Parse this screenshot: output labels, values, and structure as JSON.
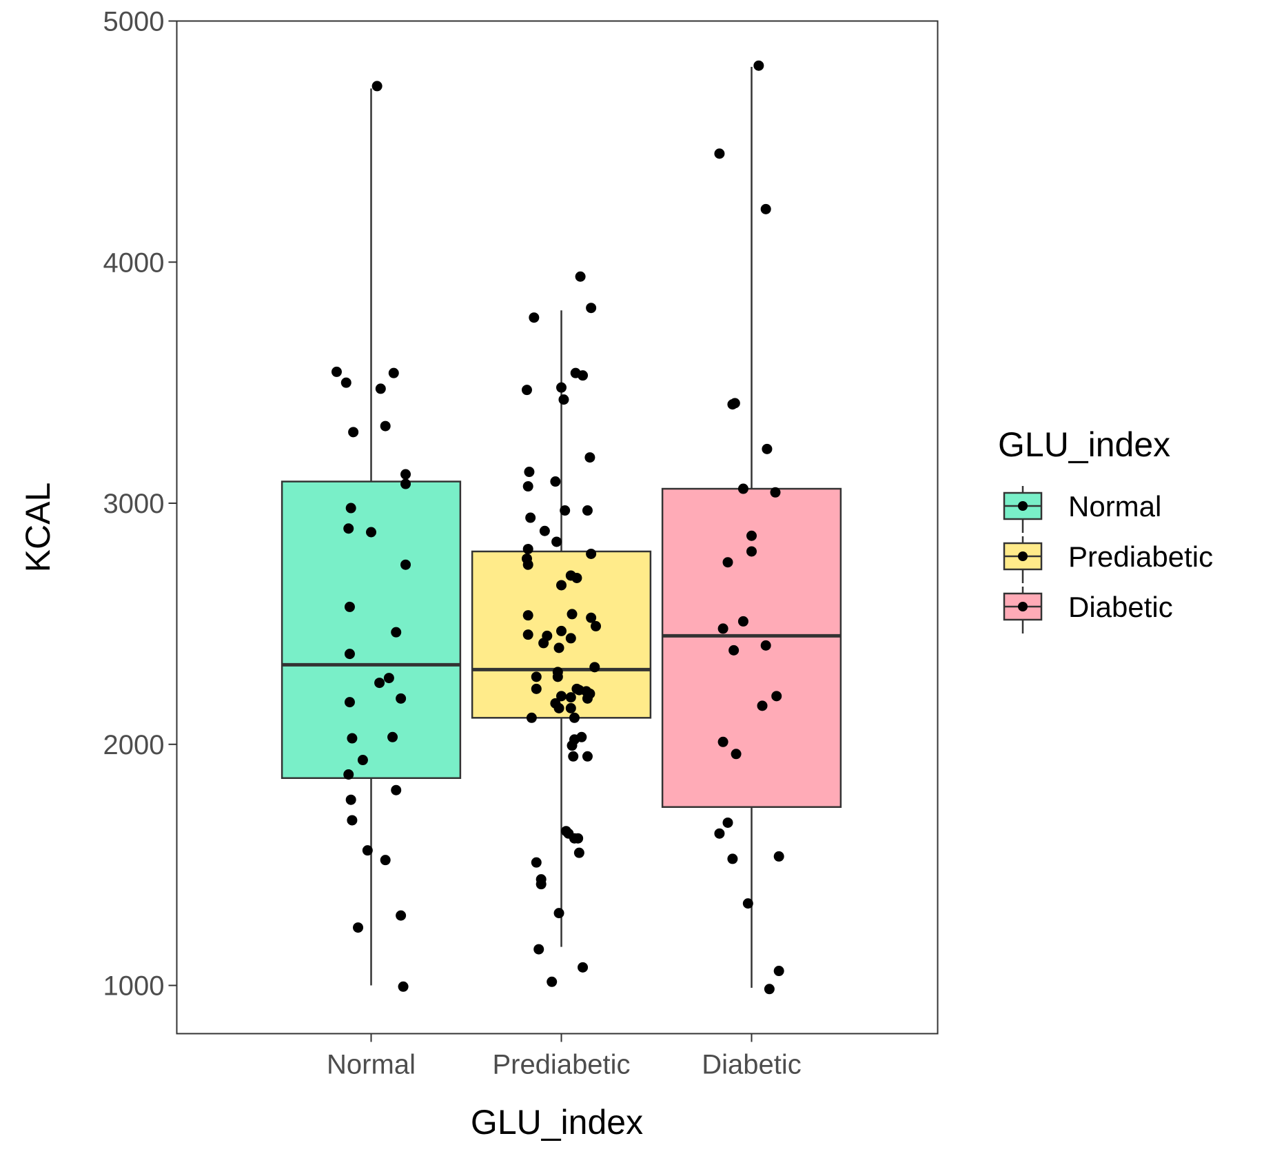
{
  "chart_data": {
    "type": "boxplot",
    "xlabel": "GLU_index",
    "ylabel": "KCAL",
    "ylim": [
      800,
      5000
    ],
    "yticks": [
      1000,
      2000,
      3000,
      4000,
      5000
    ],
    "categories": [
      "Normal",
      "Prediabetic",
      "Diabetic"
    ],
    "grid": false,
    "legend": {
      "title": "GLU_index",
      "position": "right",
      "entries": [
        "Normal",
        "Prediabetic",
        "Diabetic"
      ]
    },
    "colors": {
      "Normal": "#79efc8",
      "Prediabetic": "#ffeb8a",
      "Diabetic": "#ffabb7",
      "outline": "#333333",
      "points": "#000000"
    },
    "boxes": [
      {
        "name": "Normal",
        "whisker_low": 1000,
        "q1": 1860,
        "median": 2330,
        "q3": 3090,
        "whisker_high": 4720
      },
      {
        "name": "Prediabetic",
        "whisker_low": 1160,
        "q1": 2110,
        "median": 2310,
        "q3": 2800,
        "whisker_high": 3800
      },
      {
        "name": "Diabetic",
        "whisker_low": 990,
        "q1": 1740,
        "median": 2450,
        "q3": 3060,
        "whisker_high": 4810
      }
    ],
    "points": [
      {
        "group": "Normal",
        "values": [
          {
            "j": -0.29,
            "y": 3545
          },
          {
            "j": -0.21,
            "y": 3500
          },
          {
            "j": -0.15,
            "y": 3295
          },
          {
            "j": 0.05,
            "y": 4730
          },
          {
            "j": 0.08,
            "y": 3475
          },
          {
            "j": 0.12,
            "y": 3320
          },
          {
            "j": 0.19,
            "y": 3540
          },
          {
            "j": 0.29,
            "y": 3120
          },
          {
            "j": 0.29,
            "y": 3080
          },
          {
            "j": -0.17,
            "y": 2980
          },
          {
            "j": -0.19,
            "y": 2895
          },
          {
            "j": 0.0,
            "y": 2880
          },
          {
            "j": 0.29,
            "y": 2745
          },
          {
            "j": -0.18,
            "y": 2570
          },
          {
            "j": 0.21,
            "y": 2465
          },
          {
            "j": -0.18,
            "y": 2375
          },
          {
            "j": 0.15,
            "y": 2275
          },
          {
            "j": 0.07,
            "y": 2255
          },
          {
            "j": -0.18,
            "y": 2175
          },
          {
            "j": 0.25,
            "y": 2190
          },
          {
            "j": -0.16,
            "y": 2025
          },
          {
            "j": 0.18,
            "y": 2030
          },
          {
            "j": -0.07,
            "y": 1935
          },
          {
            "j": -0.19,
            "y": 1875
          },
          {
            "j": -0.17,
            "y": 1770
          },
          {
            "j": 0.21,
            "y": 1810
          },
          {
            "j": -0.16,
            "y": 1685
          },
          {
            "j": -0.03,
            "y": 1560
          },
          {
            "j": 0.12,
            "y": 1520
          },
          {
            "j": -0.11,
            "y": 1240
          },
          {
            "j": 0.25,
            "y": 1290
          },
          {
            "j": 0.27,
            "y": 995
          }
        ]
      },
      {
        "group": "Prediabetic",
        "values": [
          {
            "j": 0.16,
            "y": 3940
          },
          {
            "j": -0.23,
            "y": 3770
          },
          {
            "j": 0.25,
            "y": 3810
          },
          {
            "j": 0.12,
            "y": 3540
          },
          {
            "j": -0.29,
            "y": 3470
          },
          {
            "j": 0.0,
            "y": 3480
          },
          {
            "j": 0.02,
            "y": 3430
          },
          {
            "j": 0.18,
            "y": 3530
          },
          {
            "j": -0.27,
            "y": 3130
          },
          {
            "j": -0.28,
            "y": 3070
          },
          {
            "j": -0.05,
            "y": 3090
          },
          {
            "j": 0.24,
            "y": 3190
          },
          {
            "j": -0.26,
            "y": 2940
          },
          {
            "j": 0.03,
            "y": 2970
          },
          {
            "j": 0.22,
            "y": 2970
          },
          {
            "j": -0.14,
            "y": 2885
          },
          {
            "j": -0.04,
            "y": 2840
          },
          {
            "j": -0.28,
            "y": 2810
          },
          {
            "j": -0.29,
            "y": 2770
          },
          {
            "j": -0.28,
            "y": 2745
          },
          {
            "j": 0.25,
            "y": 2790
          },
          {
            "j": 0.08,
            "y": 2700
          },
          {
            "j": 0.13,
            "y": 2690
          },
          {
            "j": 0.0,
            "y": 2660
          },
          {
            "j": -0.28,
            "y": 2535
          },
          {
            "j": 0.09,
            "y": 2540
          },
          {
            "j": 0.25,
            "y": 2525
          },
          {
            "j": 0.29,
            "y": 2490
          },
          {
            "j": -0.28,
            "y": 2455
          },
          {
            "j": -0.12,
            "y": 2450
          },
          {
            "j": 0.0,
            "y": 2470
          },
          {
            "j": 0.08,
            "y": 2440
          },
          {
            "j": -0.15,
            "y": 2420
          },
          {
            "j": -0.02,
            "y": 2400
          },
          {
            "j": 0.28,
            "y": 2320
          },
          {
            "j": -0.21,
            "y": 2280
          },
          {
            "j": -0.03,
            "y": 2300
          },
          {
            "j": -0.03,
            "y": 2280
          },
          {
            "j": -0.21,
            "y": 2230
          },
          {
            "j": 0.13,
            "y": 2230
          },
          {
            "j": 0.15,
            "y": 2225
          },
          {
            "j": 0.21,
            "y": 2220
          },
          {
            "j": 0.24,
            "y": 2210
          },
          {
            "j": 0.0,
            "y": 2200
          },
          {
            "j": 0.08,
            "y": 2195
          },
          {
            "j": 0.22,
            "y": 2190
          },
          {
            "j": -0.05,
            "y": 2170
          },
          {
            "j": -0.02,
            "y": 2150
          },
          {
            "j": 0.08,
            "y": 2150
          },
          {
            "j": -0.25,
            "y": 2110
          },
          {
            "j": 0.11,
            "y": 2110
          },
          {
            "j": 0.17,
            "y": 2030
          },
          {
            "j": 0.11,
            "y": 2020
          },
          {
            "j": 0.09,
            "y": 1995
          },
          {
            "j": 0.1,
            "y": 1950
          },
          {
            "j": 0.22,
            "y": 1950
          },
          {
            "j": 0.04,
            "y": 1640
          },
          {
            "j": 0.06,
            "y": 1630
          },
          {
            "j": 0.11,
            "y": 1610
          },
          {
            "j": 0.14,
            "y": 1610
          },
          {
            "j": 0.15,
            "y": 1550
          },
          {
            "j": -0.21,
            "y": 1510
          },
          {
            "j": -0.17,
            "y": 1440
          },
          {
            "j": -0.17,
            "y": 1420
          },
          {
            "j": -0.02,
            "y": 1300
          },
          {
            "j": -0.19,
            "y": 1150
          },
          {
            "j": 0.18,
            "y": 1075
          },
          {
            "j": -0.08,
            "y": 1015
          }
        ]
      },
      {
        "group": "Diabetic",
        "values": [
          {
            "j": 0.06,
            "y": 4815
          },
          {
            "j": -0.27,
            "y": 4450
          },
          {
            "j": 0.12,
            "y": 4220
          },
          {
            "j": -0.16,
            "y": 3410
          },
          {
            "j": -0.14,
            "y": 3415
          },
          {
            "j": 0.13,
            "y": 3225
          },
          {
            "j": -0.07,
            "y": 3060
          },
          {
            "j": 0.2,
            "y": 3045
          },
          {
            "j": 0.0,
            "y": 2865
          },
          {
            "j": 0.0,
            "y": 2800
          },
          {
            "j": -0.2,
            "y": 2755
          },
          {
            "j": -0.24,
            "y": 2480
          },
          {
            "j": -0.07,
            "y": 2510
          },
          {
            "j": -0.15,
            "y": 2390
          },
          {
            "j": 0.12,
            "y": 2410
          },
          {
            "j": 0.21,
            "y": 2200
          },
          {
            "j": 0.09,
            "y": 2160
          },
          {
            "j": -0.24,
            "y": 2010
          },
          {
            "j": -0.13,
            "y": 1960
          },
          {
            "j": -0.27,
            "y": 1630
          },
          {
            "j": -0.2,
            "y": 1675
          },
          {
            "j": -0.16,
            "y": 1525
          },
          {
            "j": 0.23,
            "y": 1535
          },
          {
            "j": -0.03,
            "y": 1340
          },
          {
            "j": 0.23,
            "y": 1060
          },
          {
            "j": 0.15,
            "y": 985
          }
        ]
      }
    ]
  }
}
